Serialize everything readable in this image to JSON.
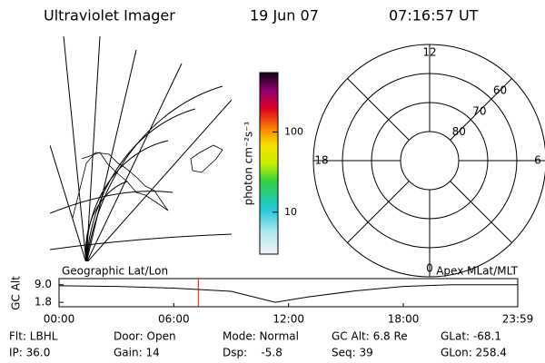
{
  "header": {
    "title": "Ultraviolet Imager",
    "date": "19 Jun 07",
    "time": "07:16:57 UT"
  },
  "colorbar": {
    "label": "photon cm⁻²s⁻¹",
    "lim": [
      3,
      550
    ],
    "log": true,
    "ticks": [
      10,
      100
    ]
  },
  "map": {
    "label": "Geographic Lat/Lon"
  },
  "polar": {
    "label": "Apex MLat/MLT",
    "lat_min": 50,
    "rings": [
      80,
      70,
      60
    ],
    "hours": [
      12,
      18,
      6,
      0
    ]
  },
  "chart_data": {
    "type": "line",
    "ylabel": "GC Alt",
    "color": "#000000",
    "x": [
      0,
      3,
      6,
      9,
      11.3,
      13,
      15.5,
      18,
      20.5,
      23.98
    ],
    "values": [
      8.6,
      8.3,
      7.6,
      6.3,
      1.8,
      4.0,
      6.5,
      8.3,
      9.0,
      9.0
    ],
    "xlim": [
      0,
      23.98
    ],
    "ylim": [
      0,
      11.5
    ],
    "xticks": [
      {
        "value": 0,
        "label": "00:00"
      },
      {
        "value": 6,
        "label": "06:00"
      },
      {
        "value": 12,
        "label": "12:00"
      },
      {
        "value": 18,
        "label": "18:00"
      },
      {
        "value": 23.98,
        "label": "23:59"
      }
    ],
    "yticks": [
      {
        "value": 9,
        "label": "9.0"
      },
      {
        "value": 1.8,
        "label": "1.8"
      }
    ],
    "current_hour": 7.28,
    "current_color": "#ff0000"
  },
  "footer": {
    "rows": [
      [
        "Flt: LBHL",
        "Door: Open",
        "Mode: Normal",
        "GC Alt: 6.8 Re",
        "GLat: -68.1"
      ],
      [
        "IP: 36.0",
        "Gain: 14",
        "Dsp:    -5.8",
        "Seq: 39",
        "GLon: 258.4"
      ]
    ]
  }
}
